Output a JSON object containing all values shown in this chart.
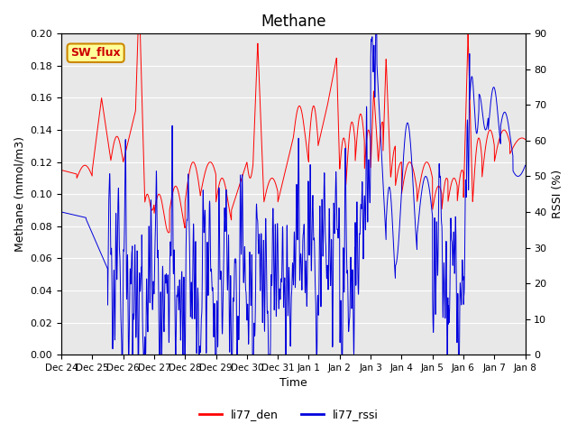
{
  "title": "Methane",
  "ylabel_left": "Methane (mmol/m3)",
  "ylabel_right": "RSSI (%)",
  "xlabel": "Time",
  "ylim_left": [
    0.0,
    0.2
  ],
  "ylim_right": [
    0,
    90
  ],
  "yticks_left": [
    0.0,
    0.02,
    0.04,
    0.06,
    0.08,
    0.1,
    0.12,
    0.14,
    0.16,
    0.18,
    0.2
  ],
  "yticks_right": [
    0,
    10,
    20,
    30,
    40,
    50,
    60,
    70,
    80,
    90
  ],
  "xtick_labels": [
    "Dec 24",
    "Dec 25",
    "Dec 26",
    "Dec 27",
    "Dec 28",
    "Dec 29",
    "Dec 30",
    "Dec 31",
    "Jan 1",
    "Jan 2",
    "Jan 3",
    "Jan 4",
    "Jan 5",
    "Jan 6",
    "Jan 7",
    "Jan 8"
  ],
  "legend_labels": [
    "li77_den",
    "li77_rssi"
  ],
  "line_color_red": "#ff0000",
  "line_color_blue": "#0000dd",
  "annotation_text": "SW_flux",
  "annotation_bg": "#ffff99",
  "annotation_border": "#cc8800",
  "background_color": "#e8e8e8",
  "fig_background": "#ffffff",
  "grid_color": "#ffffff",
  "title_fontsize": 12,
  "label_fontsize": 9
}
